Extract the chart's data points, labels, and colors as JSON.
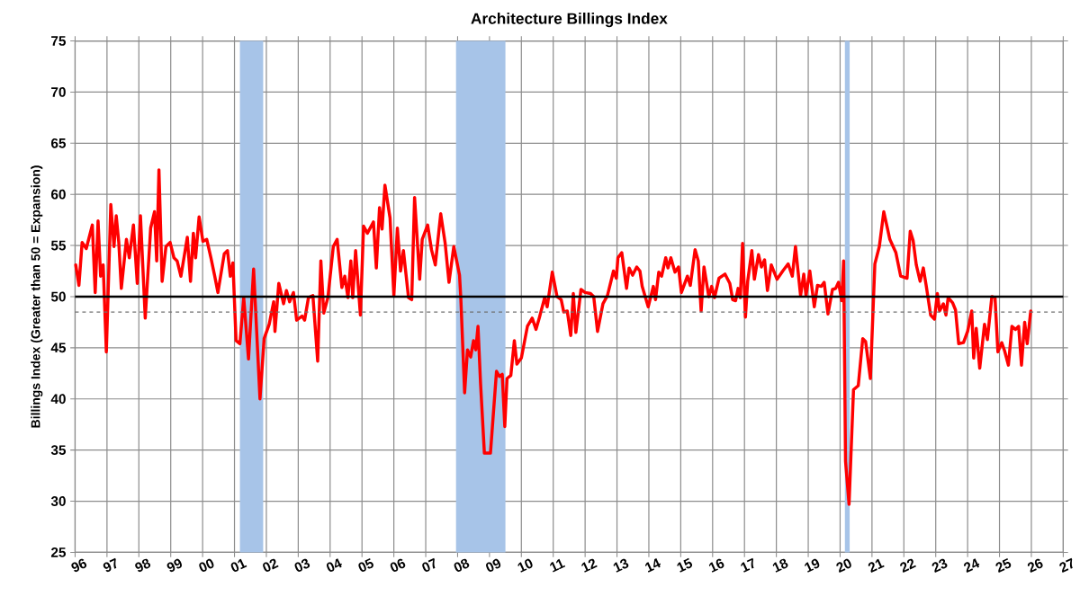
{
  "chart_data": {
    "type": "line",
    "title": "Architecture Billings Index",
    "ylabel": "Billings Index (Greater than 50 = Expansion)",
    "xlim": [
      1996,
      2027
    ],
    "ylim": [
      25,
      75
    ],
    "xticks": [
      {
        "value": 1996,
        "label": "96"
      },
      {
        "value": 1997,
        "label": "97"
      },
      {
        "value": 1998,
        "label": "98"
      },
      {
        "value": 1999,
        "label": "99"
      },
      {
        "value": 2000,
        "label": "00"
      },
      {
        "value": 2001,
        "label": "01"
      },
      {
        "value": 2002,
        "label": "02"
      },
      {
        "value": 2003,
        "label": "03"
      },
      {
        "value": 2004,
        "label": "04"
      },
      {
        "value": 2005,
        "label": "05"
      },
      {
        "value": 2006,
        "label": "06"
      },
      {
        "value": 2007,
        "label": "07"
      },
      {
        "value": 2008,
        "label": "08"
      },
      {
        "value": 2009,
        "label": "09"
      },
      {
        "value": 2010,
        "label": "10"
      },
      {
        "value": 2011,
        "label": "11"
      },
      {
        "value": 2012,
        "label": "12"
      },
      {
        "value": 2013,
        "label": "13"
      },
      {
        "value": 2014,
        "label": "14"
      },
      {
        "value": 2015,
        "label": "15"
      },
      {
        "value": 2016,
        "label": "16"
      },
      {
        "value": 2017,
        "label": "17"
      },
      {
        "value": 2018,
        "label": "18"
      },
      {
        "value": 2019,
        "label": "19"
      },
      {
        "value": 2020,
        "label": "20"
      },
      {
        "value": 2021,
        "label": "21"
      },
      {
        "value": 2022,
        "label": "22"
      },
      {
        "value": 2023,
        "label": "23"
      },
      {
        "value": 2024,
        "label": "24"
      },
      {
        "value": 2025,
        "label": "25"
      },
      {
        "value": 2026,
        "label": "26"
      },
      {
        "value": 2027,
        "label": "27"
      }
    ],
    "yticks": [
      25,
      30,
      35,
      40,
      45,
      50,
      55,
      60,
      65,
      70,
      75
    ],
    "grid": true,
    "line_style": "solid",
    "bands": [
      {
        "axis": "x",
        "from": 2001.17,
        "to": 2001.9,
        "color": "#a7c4e8"
      },
      {
        "axis": "x",
        "from": 2007.95,
        "to": 2009.5,
        "color": "#a7c4e8"
      },
      {
        "axis": "x",
        "from": 2020.15,
        "to": 2020.3,
        "color": "#a7c4e8"
      }
    ],
    "ref_lines": [
      {
        "axis": "y",
        "value": 50,
        "color": "#000000",
        "line_style": "solid"
      },
      {
        "axis": "y",
        "value": 48.5,
        "color": "#707070",
        "line_style": "dashed"
      }
    ],
    "series": [
      {
        "color": "#ff0000",
        "x": [
          1996.02,
          1996.12,
          1996.22,
          1996.35,
          1996.54,
          1996.63,
          1996.72,
          1996.8,
          1996.88,
          1996.98,
          1997.12,
          1997.22,
          1997.29,
          1997.37,
          1997.45,
          1997.61,
          1997.7,
          1997.83,
          1997.95,
          1998.05,
          1998.2,
          1998.37,
          1998.49,
          1998.56,
          1998.63,
          1998.73,
          1998.85,
          1998.98,
          1999.1,
          1999.2,
          1999.32,
          1999.52,
          1999.62,
          1999.71,
          1999.78,
          1999.89,
          2000.01,
          2000.13,
          2000.26,
          2000.38,
          2000.48,
          2000.68,
          2000.78,
          2000.87,
          2000.95,
          2001.05,
          2001.17,
          2001.29,
          2001.44,
          2001.6,
          2001.8,
          2001.93,
          2002.09,
          2002.23,
          2002.27,
          2002.39,
          2002.54,
          2002.63,
          2002.73,
          2002.85,
          2002.95,
          2003.12,
          2003.2,
          2003.32,
          2003.46,
          2003.61,
          2003.71,
          2003.8,
          2003.93,
          2004.1,
          2004.22,
          2004.37,
          2004.46,
          2004.56,
          2004.65,
          2004.71,
          2004.8,
          2004.95,
          2005.05,
          2005.17,
          2005.36,
          2005.45,
          2005.55,
          2005.63,
          2005.72,
          2005.88,
          2006.0,
          2006.11,
          2006.21,
          2006.3,
          2006.46,
          2006.56,
          2006.65,
          2006.81,
          2006.89,
          2007.06,
          2007.18,
          2007.3,
          2007.47,
          2007.61,
          2007.73,
          2007.88,
          2008.06,
          2008.1,
          2008.22,
          2008.31,
          2008.41,
          2008.5,
          2008.57,
          2008.64,
          2008.72,
          2008.84,
          2009.03,
          2009.22,
          2009.31,
          2009.4,
          2009.48,
          2009.55,
          2009.67,
          2009.78,
          2009.86,
          2010.0,
          2010.19,
          2010.34,
          2010.46,
          2010.57,
          2010.73,
          2010.81,
          2010.97,
          2011.12,
          2011.25,
          2011.33,
          2011.44,
          2011.55,
          2011.63,
          2011.71,
          2011.87,
          2012.0,
          2012.17,
          2012.27,
          2012.39,
          2012.56,
          2012.7,
          2012.89,
          2012.98,
          2013.03,
          2013.15,
          2013.3,
          2013.38,
          2013.49,
          2013.62,
          2013.72,
          2013.79,
          2013.98,
          2014.14,
          2014.21,
          2014.31,
          2014.4,
          2014.53,
          2014.6,
          2014.69,
          2014.82,
          2014.93,
          2015.02,
          2015.21,
          2015.3,
          2015.45,
          2015.55,
          2015.64,
          2015.73,
          2015.88,
          2015.97,
          2016.06,
          2016.2,
          2016.39,
          2016.54,
          2016.63,
          2016.72,
          2016.8,
          2016.87,
          2016.94,
          2017.03,
          2017.1,
          2017.23,
          2017.31,
          2017.44,
          2017.53,
          2017.63,
          2017.72,
          2017.84,
          2018.02,
          2018.2,
          2018.37,
          2018.5,
          2018.6,
          2018.76,
          2018.86,
          2018.93,
          2019.05,
          2019.19,
          2019.29,
          2019.41,
          2019.5,
          2019.62,
          2019.76,
          2019.86,
          2019.95,
          2020.05,
          2020.11,
          2020.17,
          2020.28,
          2020.42,
          2020.57,
          2020.71,
          2020.8,
          2020.95,
          2021.09,
          2021.23,
          2021.37,
          2021.56,
          2021.75,
          2021.9,
          2022.1,
          2022.2,
          2022.29,
          2022.39,
          2022.51,
          2022.61,
          2022.7,
          2022.84,
          2022.96,
          2023.05,
          2023.12,
          2023.24,
          2023.32,
          2023.39,
          2023.53,
          2023.62,
          2023.72,
          2023.87,
          2024.0,
          2024.13,
          2024.19,
          2024.27,
          2024.38,
          2024.53,
          2024.62,
          2024.76,
          2024.86,
          2024.95,
          2025.07,
          2025.16,
          2025.28,
          2025.39,
          2025.5,
          2025.6,
          2025.69,
          2025.79,
          2025.87,
          2025.98
        ],
        "values": [
          53.1,
          51.1,
          55.3,
          54.7,
          57.0,
          50.4,
          57.4,
          52.0,
          53.1,
          44.6,
          59.0,
          54.9,
          57.9,
          55.3,
          50.8,
          55.6,
          53.8,
          57.0,
          51.3,
          57.9,
          47.9,
          56.7,
          58.3,
          53.5,
          62.4,
          51.5,
          54.9,
          55.3,
          53.8,
          53.5,
          52.0,
          55.8,
          51.5,
          56.2,
          53.8,
          57.8,
          55.4,
          55.6,
          53.8,
          52.0,
          50.4,
          54.2,
          54.5,
          52.0,
          53.3,
          45.7,
          45.4,
          49.9,
          43.9,
          52.7,
          40.0,
          45.9,
          47.3,
          49.5,
          46.6,
          51.3,
          49.3,
          50.6,
          49.5,
          50.4,
          47.7,
          48.1,
          47.7,
          49.9,
          50.1,
          43.7,
          53.5,
          48.4,
          49.9,
          54.9,
          55.6,
          50.9,
          52.0,
          49.9,
          53.5,
          49.9,
          54.5,
          48.2,
          56.9,
          56.2,
          57.3,
          52.8,
          58.7,
          56.6,
          60.9,
          57.7,
          50.1,
          56.7,
          52.5,
          54.5,
          49.9,
          49.7,
          59.7,
          51.7,
          55.6,
          57.0,
          54.6,
          53.1,
          58.1,
          55.2,
          51.4,
          54.9,
          52.1,
          49.9,
          40.6,
          44.8,
          44.1,
          45.7,
          44.8,
          47.1,
          41.5,
          34.7,
          34.7,
          42.7,
          42.2,
          42.4,
          37.3,
          42.0,
          42.3,
          45.7,
          43.4,
          44.0,
          47.1,
          47.9,
          46.8,
          48.0,
          49.9,
          49.0,
          52.4,
          50.0,
          49.7,
          48.5,
          48.6,
          46.2,
          50.3,
          46.5,
          50.7,
          50.4,
          50.3,
          50.0,
          46.6,
          49.3,
          50.1,
          52.5,
          51.8,
          53.8,
          54.3,
          50.8,
          52.8,
          52.1,
          52.9,
          52.5,
          51.0,
          49.0,
          51.0,
          49.7,
          52.4,
          52.0,
          53.8,
          52.8,
          53.8,
          52.4,
          52.9,
          50.4,
          52.0,
          51.1,
          54.6,
          53.5,
          48.6,
          52.9,
          50.0,
          51.0,
          49.9,
          51.8,
          52.2,
          51.3,
          49.7,
          49.6,
          50.8,
          49.9,
          55.2,
          48.0,
          51.5,
          54.5,
          51.7,
          54.1,
          52.9,
          53.6,
          50.6,
          53.1,
          51.7,
          52.5,
          53.2,
          52.0,
          54.9,
          50.1,
          52.2,
          50.1,
          52.5,
          49.0,
          51.1,
          51.0,
          51.4,
          48.3,
          50.7,
          50.8,
          51.4,
          49.6,
          53.5,
          33.9,
          29.7,
          40.9,
          41.3,
          45.9,
          45.6,
          42.0,
          53.2,
          54.9,
          58.3,
          55.6,
          54.3,
          52.0,
          51.8,
          56.4,
          55.5,
          53.1,
          51.5,
          52.8,
          51.1,
          48.2,
          47.8,
          50.3,
          48.6,
          49.3,
          48.2,
          49.9,
          49.4,
          48.7,
          45.4,
          45.5,
          46.6,
          48.6,
          44.0,
          46.9,
          43.0,
          47.3,
          45.8,
          50.0,
          49.9,
          44.6,
          45.5,
          44.7,
          43.3,
          47.1,
          46.8,
          47.1,
          43.3,
          47.5,
          45.4,
          48.6
        ]
      }
    ]
  }
}
